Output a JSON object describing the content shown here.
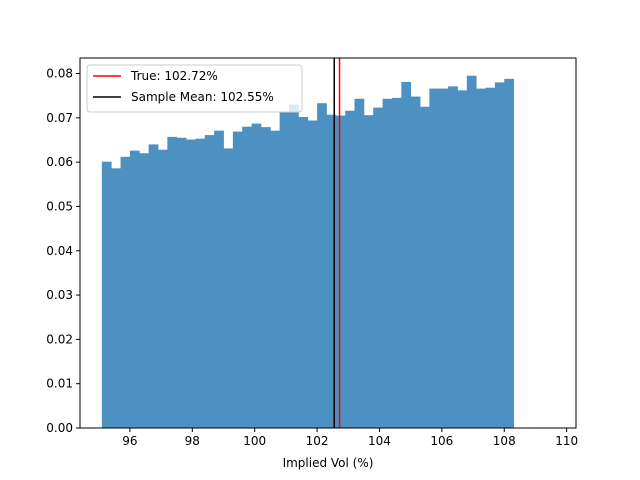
{
  "chart_data": {
    "type": "bar",
    "title": "",
    "xlabel": "Implied Vol (%)",
    "ylabel": "",
    "xlim": [
      94.4,
      110.3
    ],
    "ylim": [
      0.0,
      0.0835
    ],
    "xticks": [
      96,
      98,
      100,
      102,
      104,
      106,
      108,
      110
    ],
    "yticks": [
      0.0,
      0.01,
      0.02,
      0.03,
      0.04,
      0.05,
      0.06,
      0.07,
      0.08
    ],
    "xtick_labels": [
      "96",
      "98",
      "100",
      "102",
      "104",
      "106",
      "108",
      "110"
    ],
    "ytick_labels": [
      "0.00",
      "0.01",
      "0.02",
      "0.03",
      "0.04",
      "0.05",
      "0.06",
      "0.07",
      "0.08"
    ],
    "grid": false,
    "bins": {
      "start": 95.1,
      "width": 0.3,
      "values": [
        0.0601,
        0.0586,
        0.0612,
        0.0626,
        0.062,
        0.064,
        0.0628,
        0.0657,
        0.0655,
        0.0651,
        0.0653,
        0.0661,
        0.0671,
        0.0631,
        0.0669,
        0.068,
        0.0687,
        0.0679,
        0.0671,
        0.0712,
        0.073,
        0.0702,
        0.0694,
        0.0733,
        0.0707,
        0.0705,
        0.0716,
        0.0743,
        0.0706,
        0.0723,
        0.0743,
        0.0745,
        0.0781,
        0.0748,
        0.0725,
        0.0766,
        0.0766,
        0.0771,
        0.0762,
        0.0795,
        0.0766,
        0.0768,
        0.078,
        0.0788
      ]
    },
    "bar_color": "#4c91c2",
    "vlines": [
      {
        "name": "True: 102.72%",
        "x": 102.72,
        "color": "#ff0000"
      },
      {
        "name": "Sample Mean: 102.55%",
        "x": 102.55,
        "color": "#000000"
      }
    ],
    "legend": {
      "placement": "upper-left",
      "entries": [
        "True: 102.72%",
        "Sample Mean: 102.55%"
      ]
    }
  }
}
